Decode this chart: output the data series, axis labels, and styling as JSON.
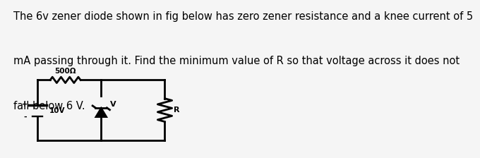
{
  "text_lines": [
    "The 6v zener diode shown in fig below has zero zener resistance and a knee current of 5",
    "mA passing through it. Find the minimum value of R so that voltage across it does not",
    "fall below 6 V."
  ],
  "text_fontsize": 10.5,
  "bg_color": "#c8c8c8",
  "page_bg": "#f5f5f5",
  "resistor_label": "500Ω",
  "battery_label": "10V",
  "zener_label": "V",
  "load_label": "R"
}
